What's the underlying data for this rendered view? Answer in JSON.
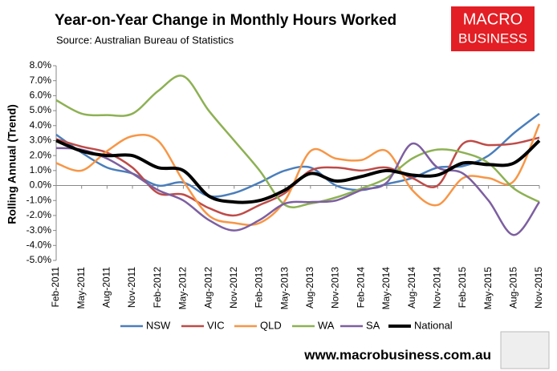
{
  "chart_data": {
    "type": "line",
    "title": "Year-on-Year Change in Monthly Hours Worked",
    "subtitle": "Source: Australian Bureau of Statistics",
    "y_axis_label": "Rolling Annual (Trend)",
    "categories": [
      "Feb-2011",
      "May-2011",
      "Aug-2011",
      "Nov-2011",
      "Feb-2012",
      "May-2012",
      "Aug-2012",
      "Nov-2012",
      "Feb-2013",
      "May-2013",
      "Aug-2013",
      "Nov-2013",
      "Feb-2014",
      "May-2014",
      "Aug-2014",
      "Nov-2014",
      "Feb-2015",
      "May-2015",
      "Aug-2015",
      "Nov-2015"
    ],
    "series": [
      {
        "name": "NSW",
        "color": "#4a7ebb",
        "values": [
          3.4,
          2.2,
          1.2,
          0.8,
          0.0,
          0.2,
          -0.7,
          -0.5,
          0.2,
          1.0,
          1.2,
          0.0,
          -0.3,
          0.1,
          0.5,
          1.2,
          1.3,
          2.0,
          3.5,
          4.8
        ]
      },
      {
        "name": "VIC",
        "color": "#be4b48",
        "values": [
          3.1,
          2.6,
          2.2,
          1.2,
          -0.5,
          -0.6,
          -1.5,
          -2.0,
          -1.3,
          -0.5,
          1.0,
          1.2,
          1.0,
          1.2,
          0.5,
          0.0,
          2.8,
          2.7,
          2.8,
          3.2
        ]
      },
      {
        "name": "QLD",
        "color": "#f79646",
        "values": [
          1.5,
          1.0,
          2.3,
          3.3,
          3.0,
          0.3,
          -2.0,
          -2.5,
          -2.5,
          -1.0,
          2.3,
          1.8,
          1.7,
          2.3,
          -0.3,
          -1.3,
          0.5,
          0.5,
          0.3,
          4.1
        ]
      },
      {
        "name": "WA",
        "color": "#8db153",
        "values": [
          5.7,
          4.8,
          4.7,
          4.8,
          6.3,
          7.3,
          5.0,
          3.0,
          1.0,
          -1.3,
          -1.2,
          -0.8,
          -0.2,
          0.5,
          1.8,
          2.4,
          2.2,
          1.5,
          -0.2,
          -1.1
        ]
      },
      {
        "name": "SA",
        "color": "#7d5fa0",
        "values": [
          2.5,
          2.4,
          1.8,
          0.8,
          -0.3,
          -1.0,
          -2.3,
          -3.0,
          -2.3,
          -1.2,
          -1.1,
          -1.0,
          -0.3,
          0.2,
          2.8,
          1.2,
          0.8,
          -1.0,
          -3.3,
          -1.1
        ]
      },
      {
        "name": "National",
        "color": "#000000",
        "values": [
          3.0,
          2.3,
          2.0,
          2.0,
          1.2,
          1.0,
          -0.7,
          -1.1,
          -1.0,
          -0.3,
          0.8,
          0.3,
          0.6,
          1.0,
          0.7,
          0.7,
          1.5,
          1.4,
          1.5,
          3.0
        ]
      }
    ],
    "ylim": [
      -5,
      8
    ],
    "yticks": [
      {
        "value": 8,
        "label": "8.0%"
      },
      {
        "value": 7,
        "label": "7.0%"
      },
      {
        "value": 6,
        "label": "6.0%"
      },
      {
        "value": 5,
        "label": "5.0%"
      },
      {
        "value": 4,
        "label": "4.0%"
      },
      {
        "value": 3,
        "label": "3.0%"
      },
      {
        "value": 2,
        "label": "2.0%"
      },
      {
        "value": 1,
        "label": "1.0%"
      },
      {
        "value": 0,
        "label": "0.0%"
      },
      {
        "value": -1,
        "label": "-1.0%"
      },
      {
        "value": -2,
        "label": "-2.0%"
      },
      {
        "value": -3,
        "label": "-3.0%"
      },
      {
        "value": -4,
        "label": "-4.0%"
      },
      {
        "value": -5,
        "label": "-5.0%"
      }
    ],
    "grid": false,
    "legend": "bottom"
  },
  "branding": {
    "logo_line1": "MACRO",
    "logo_line2": "BUSINESS",
    "website": "www.macrobusiness.com.au"
  }
}
